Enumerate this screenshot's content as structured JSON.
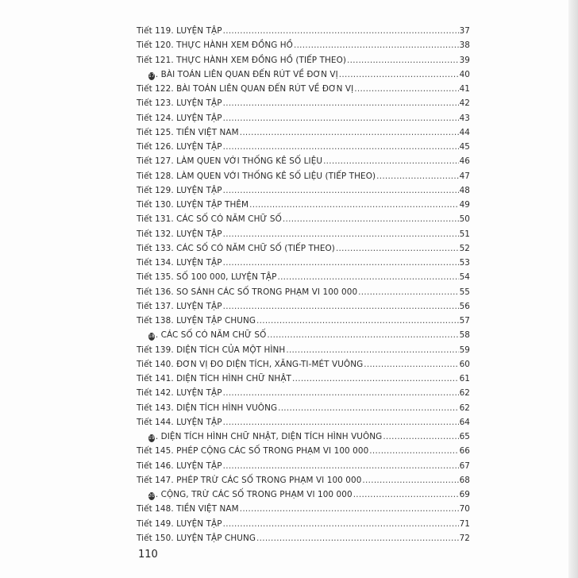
{
  "toc": [
    {
      "label": "Tiết 119. LUYỆN TẬP",
      "page": "37"
    },
    {
      "label": "Tiết 120. THỰC HÀNH XEM ĐỒNG HỒ",
      "page": "38"
    },
    {
      "label": "Tiết 121. THỰC HÀNH XEM ĐỒNG HỒ (TIẾP THEO)",
      "page": "39"
    },
    {
      "section": "17",
      "label": ". BÀI TOÁN LIÊN QUAN ĐẾN RÚT VỀ ĐƠN VỊ",
      "page": "40"
    },
    {
      "label": "Tiết 122. BÀI TOÁN LIÊN QUAN ĐẾN RÚT VỀ ĐƠN VỊ",
      "page": "41"
    },
    {
      "label": "Tiết 123. LUYỆN TẬP",
      "page": "42"
    },
    {
      "label": "Tiết 124. LUYỆN TẬP",
      "page": "43"
    },
    {
      "label": "Tiết 125. TIỀN VIỆT NAM",
      "page": "44"
    },
    {
      "label": "Tiết 126. LUYỆN TẬP",
      "page": "45"
    },
    {
      "label": "Tiết 127. LÀM QUEN VỚI THỐNG KÊ SỐ LIỆU",
      "page": "46"
    },
    {
      "label": "Tiết 128. LÀM QUEN VỚI THỐNG KÊ SỐ LIỆU (TIẾP THEO)",
      "page": "47"
    },
    {
      "label": "Tiết 129. LUYỆN TẬP",
      "page": "48"
    },
    {
      "label": "Tiết 130. LUYỆN TẬP THÊM",
      "page": "49"
    },
    {
      "label": "Tiết 131. CÁC SỐ CÓ NĂM CHỮ SỐ",
      "page": "50"
    },
    {
      "label": "Tiết 132. LUYỆN TẬP",
      "page": "51"
    },
    {
      "label": "Tiết 133. CÁC SỐ CÓ NĂM CHỮ SỐ (TIẾP THEO)",
      "page": "52"
    },
    {
      "label": "Tiết 134. LUYỆN TẬP",
      "page": "53"
    },
    {
      "label": "Tiết 135. SỐ 100 000,  LUYỆN TẬP",
      "page": "54"
    },
    {
      "label": "Tiết 136. SO SÁNH CÁC SỐ TRONG PHẠM VI 100 000",
      "page": "55"
    },
    {
      "label": "Tiết 137. LUYỆN TẬP",
      "page": "56"
    },
    {
      "label": "Tiết 138. LUYỆN TẬP CHUNG",
      "page": "57"
    },
    {
      "section": "18",
      "label": ". CÁC SỐ CÓ NĂM CHỮ SỐ",
      "page": "58"
    },
    {
      "label": "Tiết 139. DIỆN TÍCH CỦA MỘT HÌNH",
      "page": "59"
    },
    {
      "label": "Tiết 140. ĐƠN VỊ ĐO DIỆN TÍCH, XĂNG-TI-MÉT VUÔNG",
      "page": "60"
    },
    {
      "label": "Tiết 141. DIỆN TÍCH HÌNH CHỮ NHẬT",
      "page": "61"
    },
    {
      "label": "Tiết 142. LUYỆN TẬP",
      "page": "62"
    },
    {
      "label": "Tiết 143. DIỆN TÍCH HÌNH VUÔNG",
      "page": "62"
    },
    {
      "label": "Tiết 144. LUYỆN TẬP",
      "page": "64"
    },
    {
      "section": "19",
      "label": ". DIỆN TÍCH HÌNH CHỮ NHẬT, DIỆN TÍCH HÌNH VUÔNG",
      "page": "65"
    },
    {
      "label": "Tiết 145. PHÉP CỘNG CÁC SỐ TRONG PHẠM VI 100 000",
      "page": "66"
    },
    {
      "label": "Tiết 146. LUYỆN TẬP",
      "page": "67"
    },
    {
      "label": "Tiết 147. PHÉP TRỪ CÁC SỐ TRONG PHẠM VI 100 000",
      "page": "68"
    },
    {
      "section": "20",
      "label": ". CỘNG, TRỪ CÁC SỐ TRONG  PHẠM VI 100 000",
      "page": "69"
    },
    {
      "label": "Tiết 148. TIỀN VIỆT NAM",
      "page": "70"
    },
    {
      "label": "Tiết 149. LUYỆN TẬP",
      "page": "71"
    },
    {
      "label": "Tiết 150. LUYỆN TẬP CHUNG",
      "page": "72"
    }
  ],
  "page_number": "110"
}
